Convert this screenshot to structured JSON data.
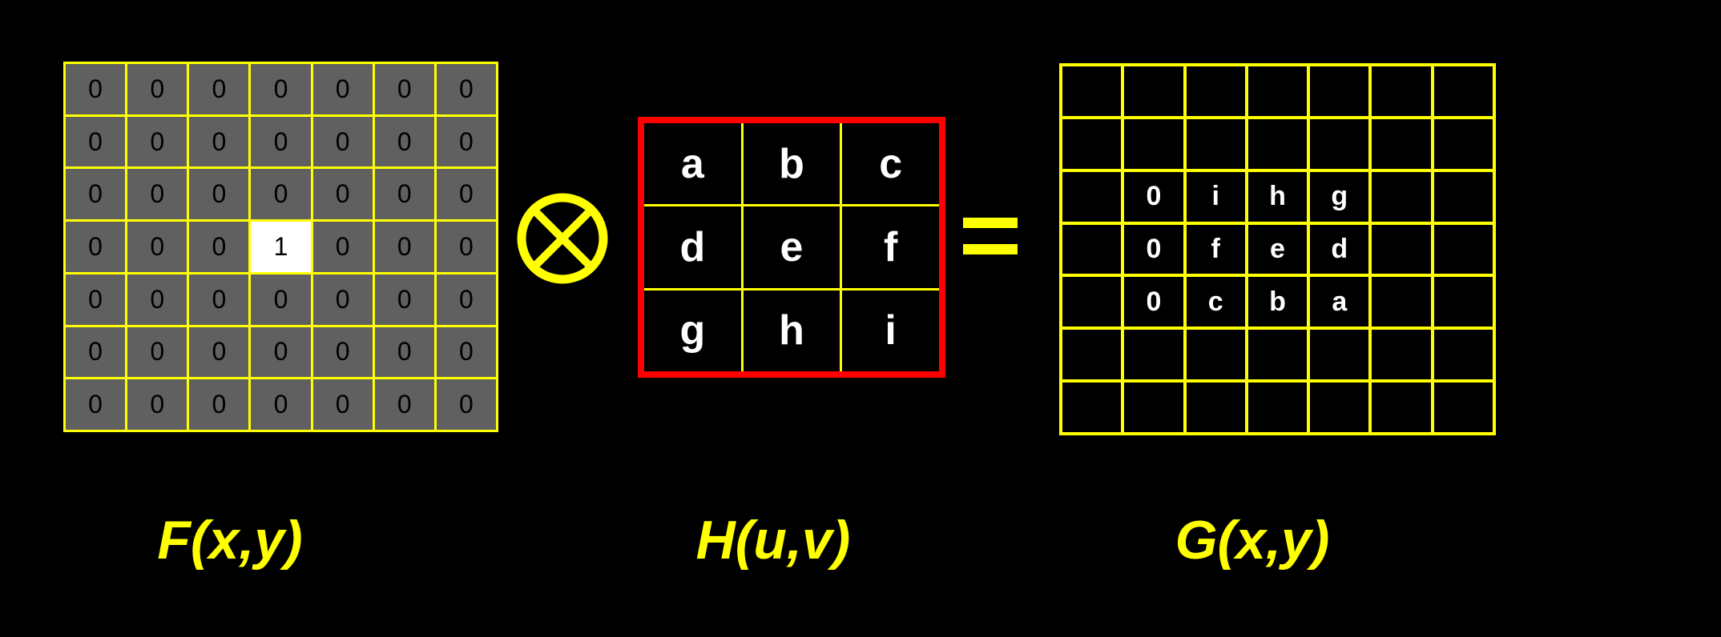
{
  "input_matrix": {
    "rows": [
      [
        "0",
        "0",
        "0",
        "0",
        "0",
        "0",
        "0"
      ],
      [
        "0",
        "0",
        "0",
        "0",
        "0",
        "0",
        "0"
      ],
      [
        "0",
        "0",
        "0",
        "0",
        "0",
        "0",
        "0"
      ],
      [
        "0",
        "0",
        "0",
        "1",
        "0",
        "0",
        "0"
      ],
      [
        "0",
        "0",
        "0",
        "0",
        "0",
        "0",
        "0"
      ],
      [
        "0",
        "0",
        "0",
        "0",
        "0",
        "0",
        "0"
      ],
      [
        "0",
        "0",
        "0",
        "0",
        "0",
        "0",
        "0"
      ]
    ],
    "highlight": {
      "row": 3,
      "col": 3
    },
    "label": "F(x,y)"
  },
  "kernel": {
    "rows": [
      [
        "a",
        "b",
        "c"
      ],
      [
        "d",
        "e",
        "f"
      ],
      [
        "g",
        "h",
        "i"
      ]
    ],
    "label": "H(u,v)"
  },
  "output_matrix": {
    "rows": [
      [
        "",
        "",
        "",
        "",
        "",
        "",
        ""
      ],
      [
        "",
        "",
        "",
        "",
        "",
        "",
        ""
      ],
      [
        "",
        "0",
        "i",
        "h",
        "g",
        "",
        ""
      ],
      [
        "",
        "0",
        "f",
        "e",
        "d",
        "",
        ""
      ],
      [
        "",
        "0",
        "c",
        "b",
        "a",
        "",
        ""
      ],
      [
        "",
        "",
        "",
        "",
        "",
        "",
        ""
      ],
      [
        "",
        "",
        "",
        "",
        "",
        "",
        ""
      ]
    ],
    "label": "G(x,y)"
  },
  "operator_icon": "circled-times-icon",
  "equals_icon": "equals-icon",
  "colors": {
    "background": "#000000",
    "grid_lines": "#ffff00",
    "input_cell": "#606060",
    "highlight_cell": "#ffffff",
    "kernel_border": "#ff0000",
    "labels": "#ffff00"
  }
}
